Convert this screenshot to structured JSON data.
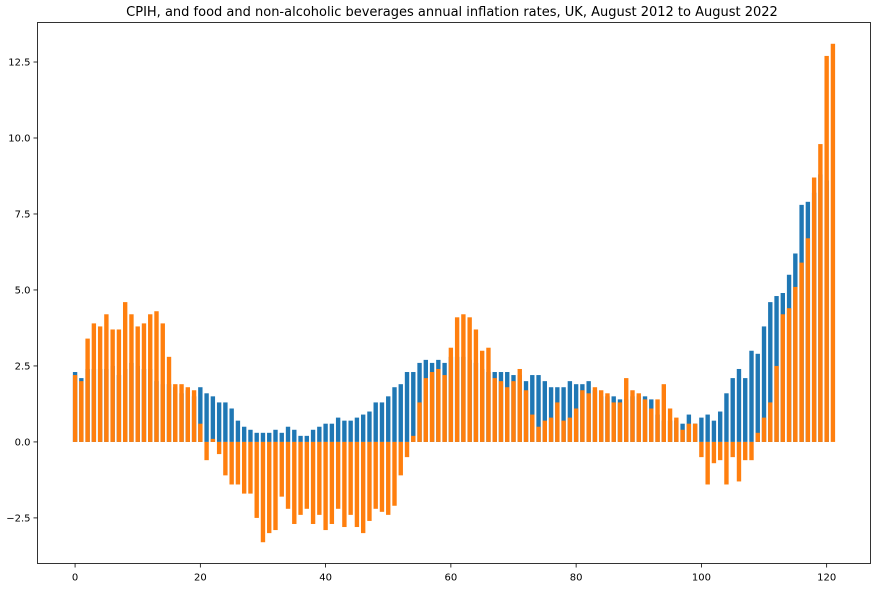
{
  "chart_data": {
    "type": "bar",
    "title": "CPIH, and food and non-alcoholic beverages annual inflation rates, UK, August 2012 to August 2022",
    "xlabel": "",
    "ylabel": "",
    "xlim": [
      -6,
      127
    ],
    "ylim": [
      -4.0,
      13.8
    ],
    "xticks": [
      0,
      20,
      40,
      60,
      80,
      100,
      120
    ],
    "xtick_labels": [
      "0",
      "20",
      "40",
      "60",
      "80",
      "100",
      "120"
    ],
    "yticks": [
      -2.5,
      0.0,
      2.5,
      5.0,
      7.5,
      10.0,
      12.5
    ],
    "ytick_labels": [
      "−2.5",
      "0.0",
      "2.5",
      "5.0",
      "7.5",
      "10.0",
      "12.5"
    ],
    "grid": false,
    "series": [
      {
        "color": "#1f77b4",
        "values": [
          2.3,
          2.1,
          2.4,
          2.4,
          2.4,
          2.4,
          2.5,
          2.2,
          2.4,
          2.6,
          2.5,
          2.4,
          2.4,
          2.0,
          1.9,
          1.9,
          1.8,
          1.6,
          1.7,
          1.5,
          1.8,
          1.6,
          1.5,
          1.3,
          1.3,
          1.1,
          0.7,
          0.5,
          0.4,
          0.3,
          0.3,
          0.3,
          0.4,
          0.3,
          0.5,
          0.4,
          0.2,
          0.2,
          0.4,
          0.5,
          0.6,
          0.6,
          0.8,
          0.7,
          0.7,
          0.8,
          0.9,
          1.0,
          1.3,
          1.3,
          1.5,
          1.8,
          1.9,
          2.3,
          2.3,
          2.6,
          2.7,
          2.6,
          2.7,
          2.6,
          2.8,
          2.8,
          2.8,
          2.7,
          2.6,
          2.4,
          2.3,
          2.3,
          2.3,
          2.3,
          2.2,
          2.2,
          2.0,
          2.2,
          2.2,
          2.0,
          1.8,
          1.8,
          1.8,
          2.0,
          1.9,
          1.9,
          2.0,
          1.7,
          1.5,
          1.5,
          1.5,
          1.4,
          1.4,
          1.5,
          1.5,
          1.5,
          1.4,
          0.9,
          0.7,
          0.7,
          0.7,
          0.6,
          0.9,
          0.6,
          0.8,
          0.9,
          0.7,
          1.0,
          1.6,
          2.1,
          2.4,
          2.1,
          3.0,
          2.9,
          3.8,
          4.6,
          4.8,
          4.9,
          5.5,
          6.2,
          7.8,
          7.9,
          8.2,
          8.8,
          8.6
        ]
      },
      {
        "color": "#ff7f0e",
        "values": [
          2.2,
          2.0,
          3.4,
          3.9,
          3.8,
          4.2,
          3.7,
          3.7,
          4.6,
          4.2,
          3.8,
          3.9,
          4.2,
          4.3,
          3.9,
          2.8,
          1.9,
          1.9,
          1.8,
          1.7,
          0.6,
          -0.6,
          0.1,
          -0.4,
          -1.1,
          -1.4,
          -1.4,
          -1.7,
          -1.7,
          -2.5,
          -3.3,
          -3.0,
          -2.9,
          -1.8,
          -2.2,
          -2.7,
          -2.4,
          -2.2,
          -2.7,
          -2.4,
          -2.9,
          -2.7,
          -2.2,
          -2.8,
          -2.4,
          -2.8,
          -3.0,
          -2.6,
          -2.2,
          -2.3,
          -2.4,
          -2.1,
          -1.1,
          -0.5,
          0.2,
          1.3,
          2.1,
          2.3,
          2.4,
          2.2,
          3.1,
          4.1,
          4.2,
          4.1,
          3.7,
          3.0,
          3.1,
          2.1,
          2.0,
          1.8,
          2.0,
          2.4,
          1.7,
          0.9,
          0.5,
          0.7,
          0.8,
          1.3,
          0.7,
          0.8,
          1.1,
          1.7,
          1.6,
          1.8,
          1.7,
          1.6,
          1.3,
          1.3,
          2.1,
          1.7,
          1.6,
          1.4,
          1.1,
          1.4,
          1.9,
          1.1,
          0.8,
          0.4,
          0.6,
          0.6,
          -0.5,
          -1.4,
          -0.7,
          -0.6,
          -1.4,
          -0.5,
          -1.3,
          -0.6,
          -0.6,
          0.3,
          0.8,
          1.3,
          2.5,
          4.2,
          4.4,
          5.1,
          5.9,
          6.7,
          8.7,
          9.8,
          12.7,
          13.1
        ]
      }
    ]
  }
}
